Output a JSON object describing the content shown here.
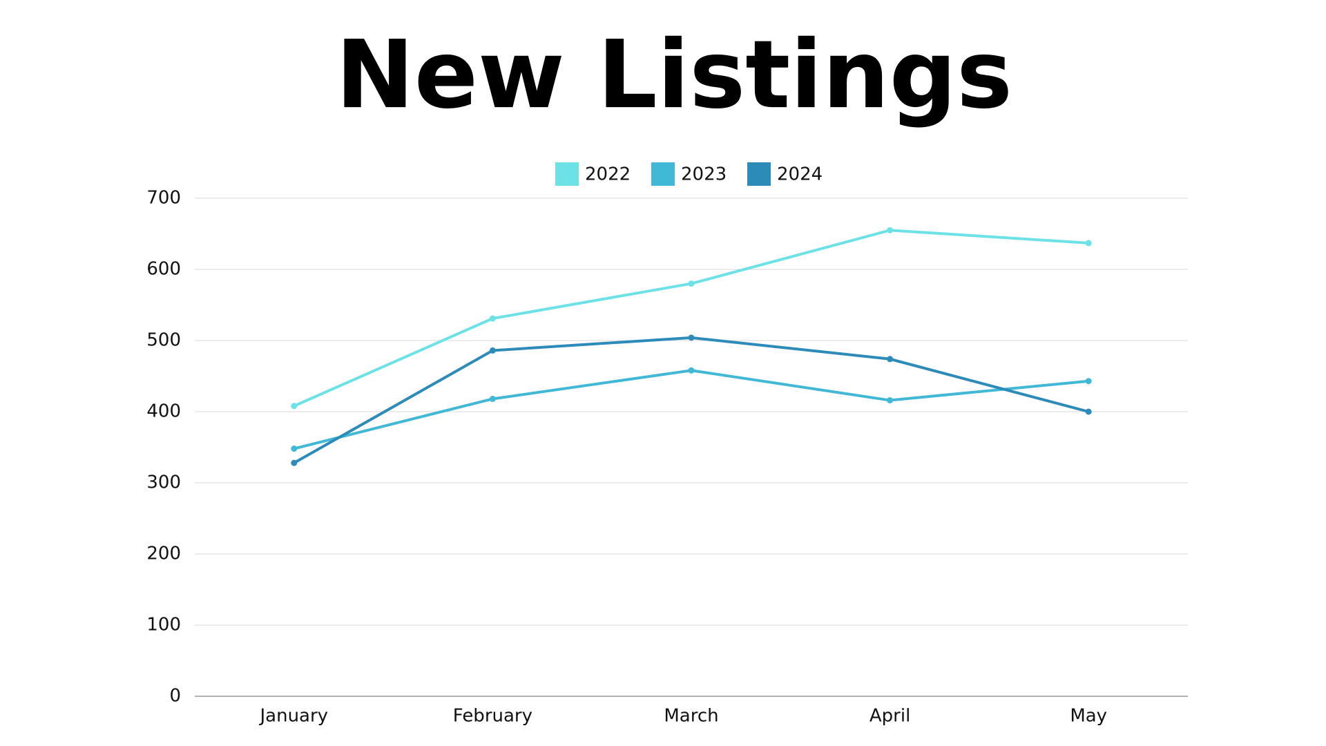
{
  "chart_data": {
    "type": "line",
    "title": "New Listings",
    "categories": [
      "January",
      "February",
      "March",
      "April",
      "May"
    ],
    "series": [
      {
        "name": "2022",
        "color": "#6de2e6",
        "values": [
          408,
          531,
          580,
          655,
          637
        ]
      },
      {
        "name": "2023",
        "color": "#41b8d5",
        "values": [
          348,
          418,
          458,
          416,
          443
        ]
      },
      {
        "name": "2024",
        "color": "#2d8bba",
        "values": [
          328,
          486,
          504,
          474,
          400
        ]
      }
    ],
    "ylim": [
      0,
      700
    ],
    "yticks": [
      0,
      100,
      200,
      300,
      400,
      500,
      600,
      700
    ],
    "grid": true,
    "legend": "top"
  }
}
